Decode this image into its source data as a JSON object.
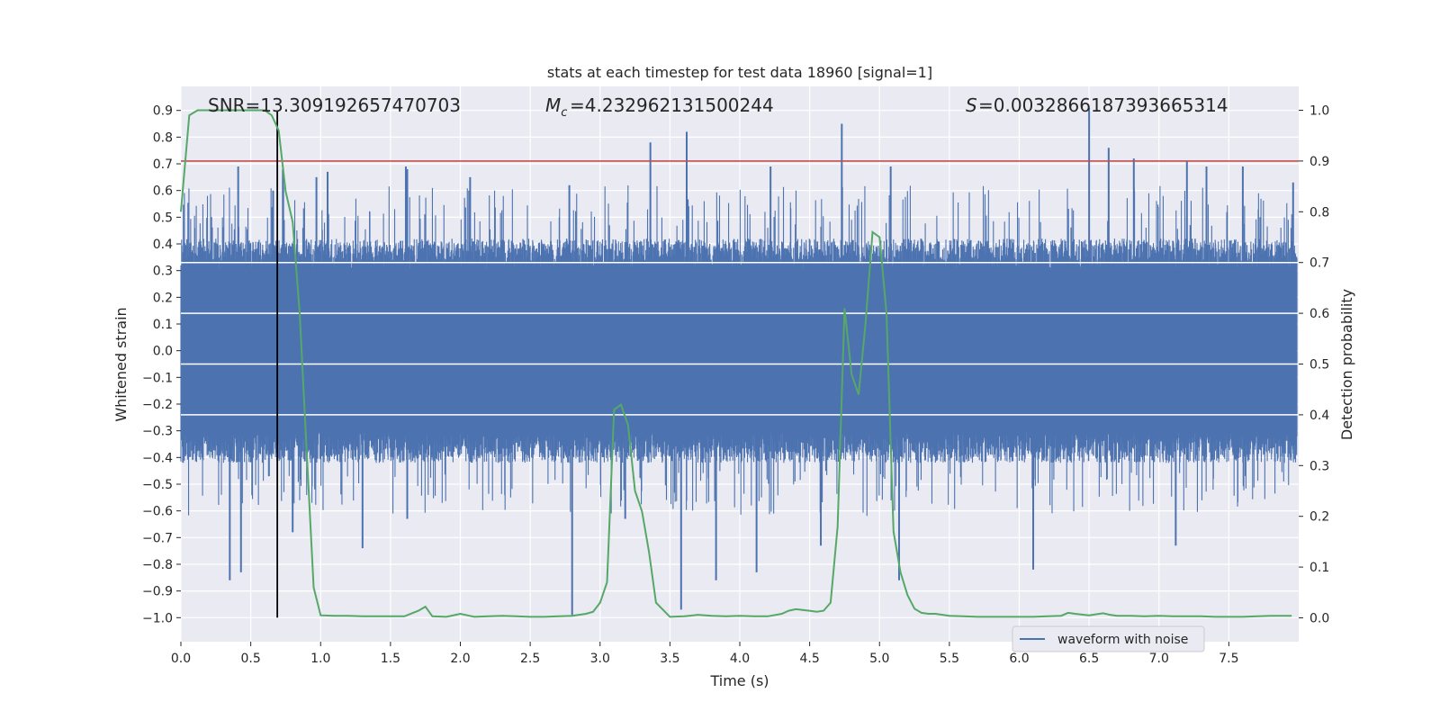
{
  "chart_data": {
    "type": "line",
    "title": "stats at each timestep for test data 18960 [signal=1]",
    "xlabel": "Time (s)",
    "ylabel": "Whitened strain",
    "ylabel_right": "Detection probability",
    "xlim": [
      0.0,
      8.0
    ],
    "ylim": [
      -1.09,
      0.99
    ],
    "ylim_right": [
      -0.047,
      1.047
    ],
    "x_ticks": [
      0.0,
      0.5,
      1.0,
      1.5,
      2.0,
      2.5,
      3.0,
      3.5,
      4.0,
      4.5,
      5.0,
      5.5,
      6.0,
      6.5,
      7.0,
      7.5
    ],
    "x_tick_labels": [
      "0.0",
      "0.5",
      "1.0",
      "1.5",
      "2.0",
      "2.5",
      "3.0",
      "3.5",
      "4.0",
      "4.5",
      "5.0",
      "5.5",
      "6.0",
      "6.5",
      "7.0",
      "7.5"
    ],
    "y_ticks": [
      0.9,
      0.8,
      0.7,
      0.6,
      0.5,
      0.4,
      0.3,
      0.2,
      0.1,
      0.0,
      -0.1,
      -0.2,
      -0.3,
      -0.4,
      -0.5,
      -0.6,
      -0.7,
      -0.8,
      -0.9,
      -1.0
    ],
    "y_tick_labels": [
      "0.9",
      "0.8",
      "0.7",
      "0.6",
      "0.5",
      "0.4",
      "0.3",
      "0.2",
      "0.1",
      "0.0",
      "−0.1",
      "−0.2",
      "−0.3",
      "−0.4",
      "−0.5",
      "−0.6",
      "−0.7",
      "−0.8",
      "−0.9",
      "−1.0"
    ],
    "y_ticks_right": [
      1.0,
      0.9,
      0.8,
      0.7,
      0.6,
      0.5,
      0.4,
      0.3,
      0.2,
      0.1,
      0.0
    ],
    "y_tick_labels_right": [
      "1.0",
      "0.9",
      "0.8",
      "0.7",
      "0.6",
      "0.5",
      "0.4",
      "0.3",
      "0.2",
      "0.1",
      "0.0"
    ],
    "grid": true,
    "legend": {
      "placement": "lower-right",
      "entries": [
        "waveform with noise"
      ]
    },
    "annotations": {
      "snr": "SNR=13.309192657470703",
      "mc": "=4.232962131500244",
      "s": "=0.0032866187393665314"
    },
    "threshold_line_right": 0.9,
    "marker_line_x": 0.69,
    "marker_line_y_range": [
      -1.0,
      0.9
    ],
    "series": [
      {
        "name": "waveform with noise",
        "kind": "strain-noise",
        "color": "#4c72b0",
        "band_typical": 0.42,
        "spikes": [
          [
            0.35,
            -0.86
          ],
          [
            0.43,
            -0.83
          ],
          [
            0.41,
            0.69
          ],
          [
            0.66,
            0.6
          ],
          [
            0.63,
            -0.47
          ],
          [
            0.73,
            0.68
          ],
          [
            0.8,
            -0.68
          ],
          [
            0.97,
            0.65
          ],
          [
            1.05,
            0.67
          ],
          [
            1.3,
            -0.74
          ],
          [
            1.62,
            -0.63
          ],
          [
            1.61,
            0.69
          ],
          [
            1.62,
            0.68
          ],
          [
            2.07,
            0.65
          ],
          [
            2.78,
            0.62
          ],
          [
            2.8,
            -0.99
          ],
          [
            3.18,
            -0.63
          ],
          [
            3.36,
            0.78
          ],
          [
            3.58,
            -0.97
          ],
          [
            3.62,
            0.82
          ],
          [
            3.83,
            -0.86
          ],
          [
            4.12,
            -0.83
          ],
          [
            4.22,
            0.69
          ],
          [
            4.58,
            -0.73
          ],
          [
            4.73,
            0.85
          ],
          [
            5.08,
            0.69
          ],
          [
            5.14,
            -0.86
          ],
          [
            6.1,
            -0.82
          ],
          [
            6.5,
            0.91
          ],
          [
            6.64,
            0.76
          ],
          [
            6.82,
            0.72
          ],
          [
            7.12,
            -0.73
          ],
          [
            7.2,
            0.71
          ],
          [
            7.34,
            0.69
          ],
          [
            7.6,
            0.69
          ],
          [
            7.96,
            0.63
          ]
        ]
      },
      {
        "name": "",
        "kind": "detection-probability",
        "axis": "right",
        "color": "#55a868",
        "x": [
          0.0,
          0.06,
          0.12,
          0.2,
          0.3,
          0.4,
          0.5,
          0.6,
          0.65,
          0.7,
          0.75,
          0.8,
          0.85,
          0.9,
          0.95,
          1.0,
          1.1,
          1.2,
          1.3,
          1.4,
          1.5,
          1.6,
          1.7,
          1.75,
          1.8,
          1.9,
          2.0,
          2.05,
          2.1,
          2.2,
          2.3,
          2.4,
          2.5,
          2.6,
          2.7,
          2.8,
          2.9,
          2.95,
          3.0,
          3.05,
          3.1,
          3.15,
          3.2,
          3.25,
          3.3,
          3.35,
          3.4,
          3.5,
          3.6,
          3.7,
          3.8,
          3.9,
          4.0,
          4.1,
          4.2,
          4.3,
          4.35,
          4.4,
          4.5,
          4.55,
          4.6,
          4.65,
          4.7,
          4.75,
          4.8,
          4.85,
          4.9,
          4.95,
          5.0,
          5.05,
          5.1,
          5.15,
          5.2,
          5.25,
          5.3,
          5.35,
          5.4,
          5.5,
          5.6,
          5.7,
          5.8,
          5.9,
          6.0,
          6.1,
          6.2,
          6.3,
          6.35,
          6.4,
          6.5,
          6.6,
          6.65,
          6.7,
          6.8,
          6.9,
          7.0,
          7.1,
          7.2,
          7.3,
          7.4,
          7.5,
          7.6,
          7.7,
          7.8,
          7.9,
          7.95
        ],
        "y": [
          0.8,
          0.99,
          1.0,
          1.0,
          1.0,
          1.0,
          1.0,
          1.0,
          0.99,
          0.96,
          0.84,
          0.78,
          0.6,
          0.33,
          0.06,
          0.005,
          0.004,
          0.004,
          0.003,
          0.003,
          0.003,
          0.003,
          0.014,
          0.022,
          0.003,
          0.002,
          0.008,
          0.005,
          0.002,
          0.003,
          0.004,
          0.003,
          0.002,
          0.002,
          0.003,
          0.004,
          0.008,
          0.012,
          0.03,
          0.07,
          0.41,
          0.42,
          0.38,
          0.25,
          0.21,
          0.13,
          0.03,
          0.002,
          0.003,
          0.006,
          0.004,
          0.003,
          0.004,
          0.003,
          0.003,
          0.008,
          0.014,
          0.017,
          0.014,
          0.012,
          0.014,
          0.03,
          0.18,
          0.61,
          0.48,
          0.44,
          0.58,
          0.76,
          0.75,
          0.6,
          0.17,
          0.09,
          0.045,
          0.018,
          0.01,
          0.008,
          0.008,
          0.004,
          0.003,
          0.002,
          0.002,
          0.002,
          0.002,
          0.002,
          0.003,
          0.004,
          0.01,
          0.008,
          0.005,
          0.009,
          0.006,
          0.004,
          0.004,
          0.003,
          0.004,
          0.003,
          0.003,
          0.003,
          0.002,
          0.002,
          0.002,
          0.003,
          0.004,
          0.004,
          0.004
        ]
      }
    ]
  },
  "colors": {
    "background": "#eaeaf2",
    "grid": "#ffffff",
    "threshold": "#c44e52",
    "marker": "#000000"
  }
}
